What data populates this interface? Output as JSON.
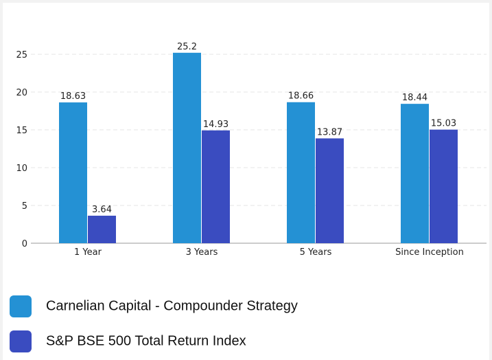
{
  "chart_data": {
    "type": "bar",
    "categories": [
      "1 Year",
      "3 Years",
      "5 Years",
      "Since Inception"
    ],
    "series": [
      {
        "name": "Carnelian Capital - Compounder Strategy",
        "color": "#2491d4",
        "values": [
          18.63,
          25.2,
          18.66,
          18.44
        ]
      },
      {
        "name": "S&P BSE 500 Total Return Index",
        "color": "#3a4cc0",
        "values": [
          3.64,
          14.93,
          13.87,
          15.03
        ]
      }
    ],
    "ylim": [
      0,
      25
    ],
    "yticks": [
      0,
      5,
      10,
      15,
      20,
      25
    ],
    "grid": true
  }
}
